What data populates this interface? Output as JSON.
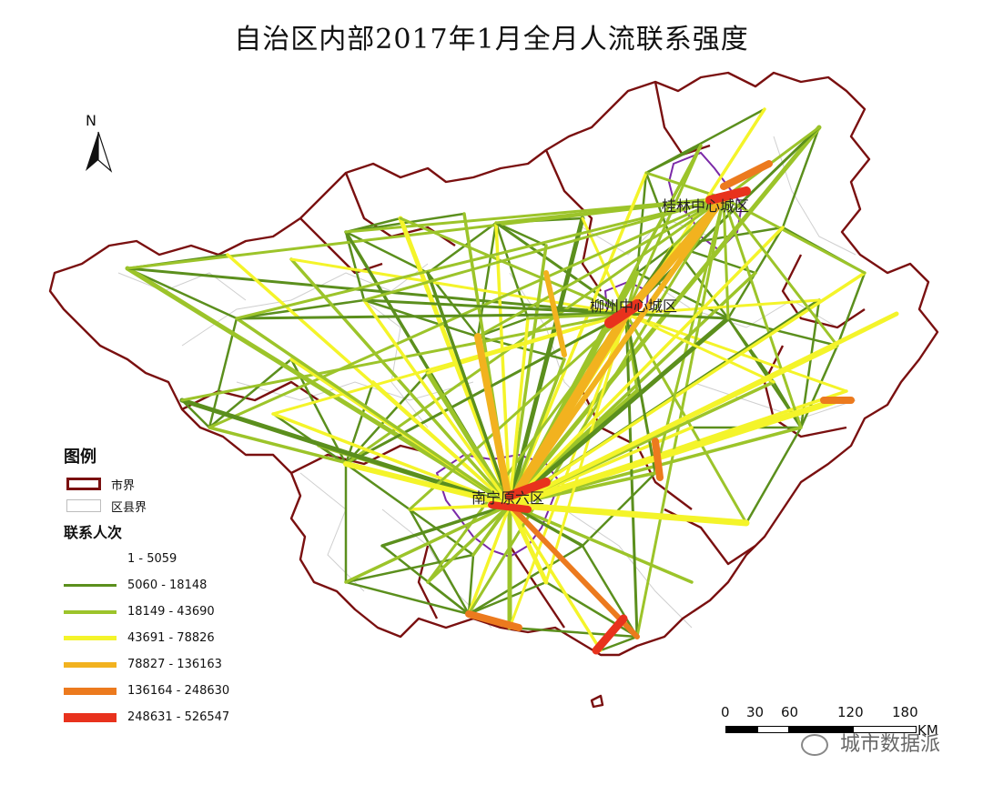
{
  "title": "自治区内部2017年1月全月人流联系强度",
  "north_label": "N",
  "city_labels": {
    "guilin": "桂林中心城区",
    "liuzhou": "柳州中心城区",
    "nanning": "南宁原六区"
  },
  "legend": {
    "title": "图例",
    "city_boundary": "市界",
    "county_boundary": "区县界",
    "flow_title": "联系人次",
    "classes": [
      {
        "label": "1 - 5059",
        "color": "#ffffff"
      },
      {
        "label": "5060 - 18148",
        "color": "#5b8f1d"
      },
      {
        "label": "18149 - 43690",
        "color": "#9cc42a"
      },
      {
        "label": "43691 - 78826",
        "color": "#f4f42a"
      },
      {
        "label": "78827 - 136163",
        "color": "#f2b21f"
      },
      {
        "label": "136164 - 248630",
        "color": "#ec7a1e"
      },
      {
        "label": "248631 - 526547",
        "color": "#e8321d"
      }
    ]
  },
  "scale_bar": {
    "ticks": [
      "0",
      "30",
      "60",
      "120",
      "180"
    ],
    "unit": "KM"
  },
  "watermark": "城市数据派",
  "colors": {
    "city_boundary": "#7a1010",
    "county_boundary": "#c9c9c9",
    "core_outline": "#7b2aa8"
  }
}
